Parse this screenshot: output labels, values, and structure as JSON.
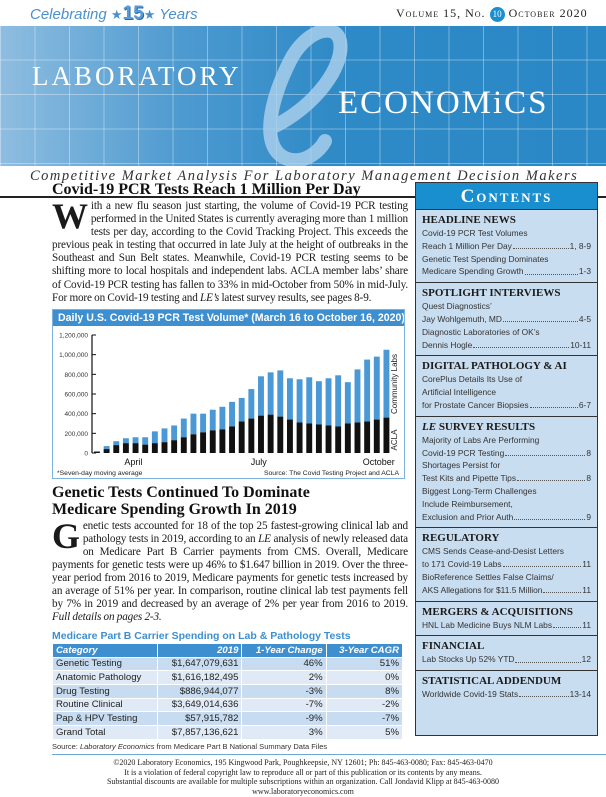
{
  "masthead": {
    "celebrating": "Celebrating",
    "years_number": "15",
    "years": "Years",
    "volume": "Volume 15, No.",
    "issue": "10",
    "date": "October 2020",
    "title_left": "LABORATORY",
    "title_e": "e",
    "title_right": "ECONOMiCS",
    "tagline": "Competitive Market Analysis For Laboratory Management Decision Makers",
    "banner_color": "#2a88c6"
  },
  "article1": {
    "title": "Covid-19 PCR Tests Reach 1 Million Per Day",
    "drop_cap": "W",
    "body_1": "ith a new flu season just starting, the volume of Covid-19 PCR testing performed in the United States is currently averaging more than 1 million tests per day, according to the Covid Tracking Project. This exceeds the previous peak in testing that occurred in late July at the height of outbreaks in the Southeast and Sun Belt states. Meanwhile, Covid-19 PCR testing seems to be shifting more to local hospitals and independent labs. ACLA member labs’ share of Covid-19 PCR testing has fallen to 33% in mid-October from 50% in mid-July. For more on Covid-19 testing and ",
    "body_italic": "LE’s",
    "body_2": " latest survey results, see pages 8-9."
  },
  "chart_data": {
    "type": "bar",
    "stacked": true,
    "title": "Daily U.S. Covid-19 PCR Test Volume* (March 16 to October 16, 2020)",
    "x": [
      "2020-03-16",
      "2020-03-23",
      "2020-03-30",
      "2020-04-06",
      "2020-04-13",
      "2020-04-20",
      "2020-04-27",
      "2020-05-04",
      "2020-05-11",
      "2020-05-18",
      "2020-05-25",
      "2020-06-01",
      "2020-06-08",
      "2020-06-15",
      "2020-06-22",
      "2020-06-29",
      "2020-07-06",
      "2020-07-13",
      "2020-07-20",
      "2020-07-27",
      "2020-08-03",
      "2020-08-10",
      "2020-08-17",
      "2020-08-24",
      "2020-08-31",
      "2020-09-07",
      "2020-09-14",
      "2020-09-21",
      "2020-09-28",
      "2020-10-05",
      "2020-10-12"
    ],
    "series": [
      {
        "name": "ACLA",
        "color": "#111111",
        "values": [
          10000,
          40000,
          80000,
          100000,
          100000,
          85000,
          100000,
          110000,
          130000,
          160000,
          190000,
          210000,
          230000,
          240000,
          270000,
          320000,
          350000,
          380000,
          390000,
          370000,
          340000,
          310000,
          300000,
          290000,
          280000,
          270000,
          300000,
          310000,
          320000,
          340000,
          360000
        ]
      },
      {
        "name": "Community Labs",
        "color": "#4a98d6",
        "values": [
          10000,
          30000,
          40000,
          50000,
          60000,
          75000,
          120000,
          140000,
          150000,
          190000,
          210000,
          190000,
          210000,
          230000,
          250000,
          240000,
          300000,
          400000,
          430000,
          470000,
          420000,
          440000,
          470000,
          440000,
          480000,
          520000,
          420000,
          540000,
          630000,
          640000,
          690000
        ]
      }
    ],
    "xtick_labels": [
      "April",
      "July",
      "October"
    ],
    "ylim": [
      0,
      1200000
    ],
    "yticks": [
      "0",
      "200,000",
      "400,000",
      "600,000",
      "800,000",
      "1,000,000",
      "1,200,000"
    ],
    "footnote": "*Seven-day moving average",
    "source": "Source: The Covid Testing Project and ACLA",
    "grid": false
  },
  "article2": {
    "title_line1": "Genetic Tests Continued To Dominate",
    "title_line2": "Medicare Spending Growth In 2019",
    "drop_cap": "G",
    "body_1": "enetic tests accounted for 18 of the top 25 fastest-growing clinical lab and pathology tests in 2019, according to an ",
    "body_italic_1": "LE",
    "body_2": " analysis of newly released data on Medicare Part B Carrier payments from CMS. Overall, Medicare payments for genetic tests were up 46% to $1.647 billion in 2019. Over the three-year period from 2016 to 2019, Medicare payments for genetic tests increased by an average of 51% per year. In comparison, routine clinical lab test payments fell by 7% in 2019 and decreased by an average of 2% per year from 2016 to 2019. ",
    "body_italic_2": "Full details on pages 2-3."
  },
  "table": {
    "title": "Medicare Part B Carrier Spending on Lab & Pathology Tests",
    "headers": [
      "Category",
      "2019",
      "1-Year Change",
      "3-Year CAGR"
    ],
    "rows": [
      [
        "Genetic Testing",
        "$1,647,079,631",
        "46%",
        "51%"
      ],
      [
        "Anatomic Pathology",
        "$1,616,182,495",
        "2%",
        "0%"
      ],
      [
        "Drug Testing",
        "$886,944,077",
        "-3%",
        "8%"
      ],
      [
        "Routine Clinical",
        "$3,649,014,636",
        "-7%",
        "-2%"
      ],
      [
        "Pap & HPV Testing",
        "$57,915,782",
        "-9%",
        "-7%"
      ],
      [
        "Grand Total",
        "$7,857,136,621",
        "3%",
        "5%"
      ]
    ],
    "source_prefix": "Source: ",
    "source_italic": "Laboratory Economics",
    "source_suffix": " from Medicare Part B National Summary Data Files"
  },
  "contents": {
    "title": "Contents",
    "sections": [
      {
        "heading": "HEADLINE NEWS",
        "lines": [
          {
            "text": "Covid-19 PCR Test Volumes"
          },
          {
            "text": "Reach 1 Million Per Day",
            "page": "1, 8-9"
          },
          {
            "text": "Genetic Test Spending Dominates"
          },
          {
            "text": "Medicare Spending Growth",
            "page": "1-3"
          }
        ]
      },
      {
        "heading": "SPOTLIGHT INTERVIEWS",
        "lines": [
          {
            "text": "Quest Diagnostics’"
          },
          {
            "text": "Jay Wohlgemuth, MD",
            "page": "4-5"
          },
          {
            "text": "Diagnostic Laboratories of OK’s"
          },
          {
            "text": "Dennis Hogle",
            "page": "10-11"
          }
        ]
      },
      {
        "heading": "DIGITAL PATHOLOGY & AI",
        "lines": [
          {
            "text": "CorePlus Details Its Use of"
          },
          {
            "text": "Artificial Intelligence"
          },
          {
            "text": "for Prostate Cancer Biopsies",
            "page": "6-7"
          }
        ]
      },
      {
        "heading_italic": "LE",
        "heading": " SURVEY RESULTS",
        "lines": [
          {
            "text": "Majority of Labs Are Performing"
          },
          {
            "text": "Covid-19 PCR Testing",
            "page": "8"
          },
          {
            "text": "Shortages Persist for"
          },
          {
            "text": "Test Kits and Pipette Tips",
            "page": "8"
          },
          {
            "text": "Biggest Long-Term Challenges"
          },
          {
            "text": "Include Reimbursement,"
          },
          {
            "text": "Exclusion and Prior Auth",
            "page": "9"
          }
        ]
      },
      {
        "heading": "REGULATORY",
        "lines": [
          {
            "text": "CMS Sends Cease-and-Desist Letters"
          },
          {
            "text": "to 171 Covid-19 Labs",
            "page": "11"
          },
          {
            "text": "BioReference Settles False Claims/"
          },
          {
            "text": "AKS Allegations for $11.5 Million",
            "page": "11"
          }
        ]
      },
      {
        "heading": "MERGERS & ACQUISITIONS",
        "lines": [
          {
            "text": "HNL Lab Medicine Buys NLM Labs",
            "page": "11"
          }
        ]
      },
      {
        "heading": "FINANCIAL",
        "lines": [
          {
            "text": "Lab Stocks Up 52% YTD",
            "page": "12"
          }
        ]
      },
      {
        "heading": "STATISTICAL ADDENDUM",
        "lines": [
          {
            "text": "Worldwide Covid-19 Stats",
            "page": "13-14"
          }
        ]
      }
    ]
  },
  "footer": {
    "line1": "©2020 Laboratory Economics, 195 Kingwood Park, Poughkeepsie, NY 12601; Ph: 845-463-0080; Fax: 845-463-0470",
    "line2": "It is a violation of federal copyright law to reproduce all or part of this publication or its contents by any means.",
    "line3": "Substantial discounts are available for multiple subscriptions within an organization. Call Jondavid Klipp at 845-463-0080",
    "website": "www.laboratoryeconomics.com"
  }
}
